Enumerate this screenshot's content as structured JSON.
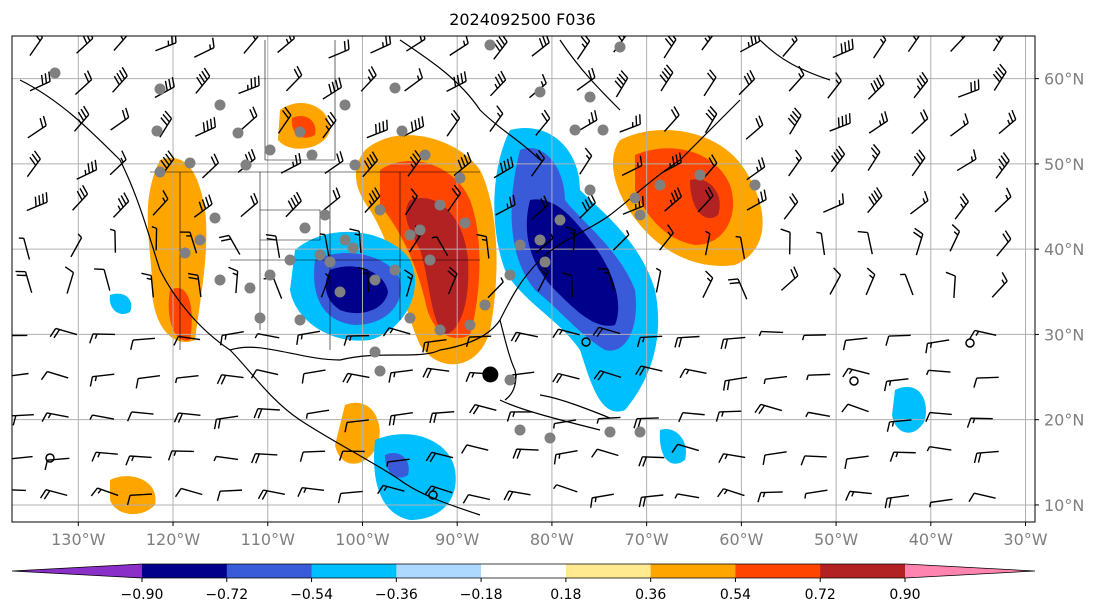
{
  "title": "2024092500 F036",
  "map": {
    "lon_labels": [
      "130°W",
      "120°W",
      "110°W",
      "100°W",
      "90°W",
      "80°W",
      "70°W",
      "60°W",
      "50°W",
      "40°W",
      "30°W"
    ],
    "lat_labels": [
      "60°N",
      "50°N",
      "40°N",
      "30°N",
      "20°N",
      "10°N"
    ],
    "lon_values": [
      -130,
      -120,
      -110,
      -100,
      -90,
      -80,
      -70,
      -60,
      -50,
      -40,
      -30
    ],
    "lat_values": [
      60,
      50,
      40,
      30,
      20,
      10
    ],
    "lon_range": [
      -137,
      -29
    ],
    "lat_range": [
      8,
      65
    ],
    "grid": true,
    "storm_marker": {
      "lon": -86.5,
      "lat": 25.3
    }
  },
  "colorbar": {
    "extend": "both",
    "ticks": [
      "−0.90",
      "−0.72",
      "−0.54",
      "−0.36",
      "−0.18",
      "0.18",
      "0.36",
      "0.54",
      "0.72",
      "0.90"
    ],
    "colors": [
      "#8b2fc9",
      "#00008b",
      "#3a5bd9",
      "#00bfff",
      "#add8ff",
      "#ffffff",
      "#ffea8f",
      "#ffa500",
      "#ff4500",
      "#b22222",
      "#ff85b0"
    ]
  }
}
